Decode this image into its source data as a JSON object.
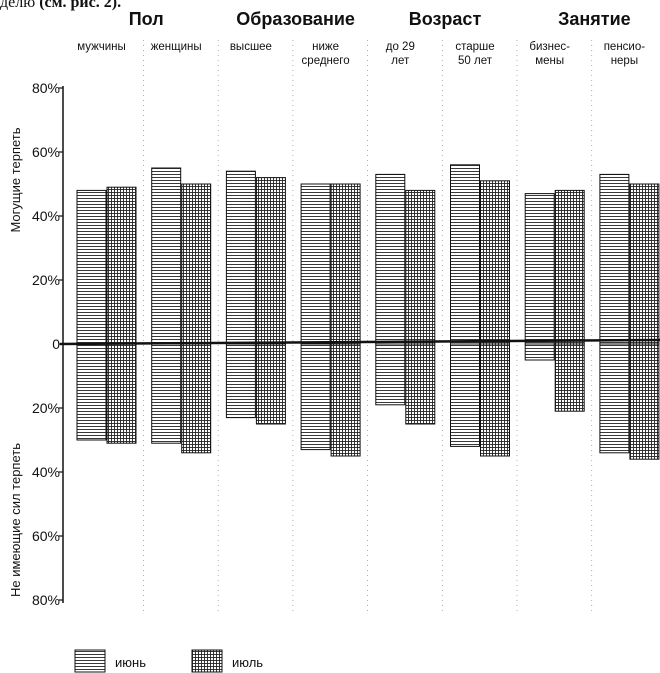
{
  "top_cut_text": {
    "plain": "делю",
    "bold": "(см. рис. 2)."
  },
  "chart_data": {
    "type": "bar",
    "groups": [
      {
        "title": "Пол",
        "categories": [
          "мужчины",
          "женщины"
        ]
      },
      {
        "title": "Образование",
        "categories": [
          "высшее",
          "ниже среднего"
        ]
      },
      {
        "title": "Возраст",
        "categories": [
          "до 29 лет",
          "старше 50 лет"
        ]
      },
      {
        "title": "Занятие",
        "categories": [
          "бизнес-мены",
          "пенсио-неры"
        ]
      }
    ],
    "categories": [
      "мужчины",
      "женщины",
      "высшее",
      "ниже среднего",
      "до 29 лет",
      "старше 50 лет",
      "бизнес-мены",
      "пенсио-неры"
    ],
    "category_label_lines": [
      [
        "мужчины"
      ],
      [
        "женщины"
      ],
      [
        "высшее"
      ],
      [
        "ниже",
        "среднего"
      ],
      [
        "до 29",
        "лет"
      ],
      [
        "старше",
        "50 лет"
      ],
      [
        "бизнес-",
        "мены"
      ],
      [
        "пенсио-",
        "неры"
      ]
    ],
    "series": [
      {
        "name": "июнь",
        "positive": [
          48,
          55,
          54,
          50,
          53,
          56,
          47,
          53
        ],
        "negative": [
          -30,
          -31,
          -23,
          -33,
          -19,
          -32,
          -5,
          -34
        ]
      },
      {
        "name": "июль",
        "positive": [
          49,
          50,
          52,
          50,
          48,
          51,
          48,
          50
        ],
        "negative": [
          -31,
          -34,
          -25,
          -35,
          -25,
          -35,
          -21,
          -36
        ]
      }
    ],
    "ylabel_positive": "Могущие терпеть",
    "ylabel_negative": "Не имеющие сил терпеть",
    "yticks": [
      "80%",
      "60%",
      "40%",
      "20%",
      "0",
      "20%",
      "40%",
      "60%",
      "80%"
    ],
    "ylim": [
      -80,
      80
    ],
    "legend_position": "bottom-left",
    "grid": false
  }
}
